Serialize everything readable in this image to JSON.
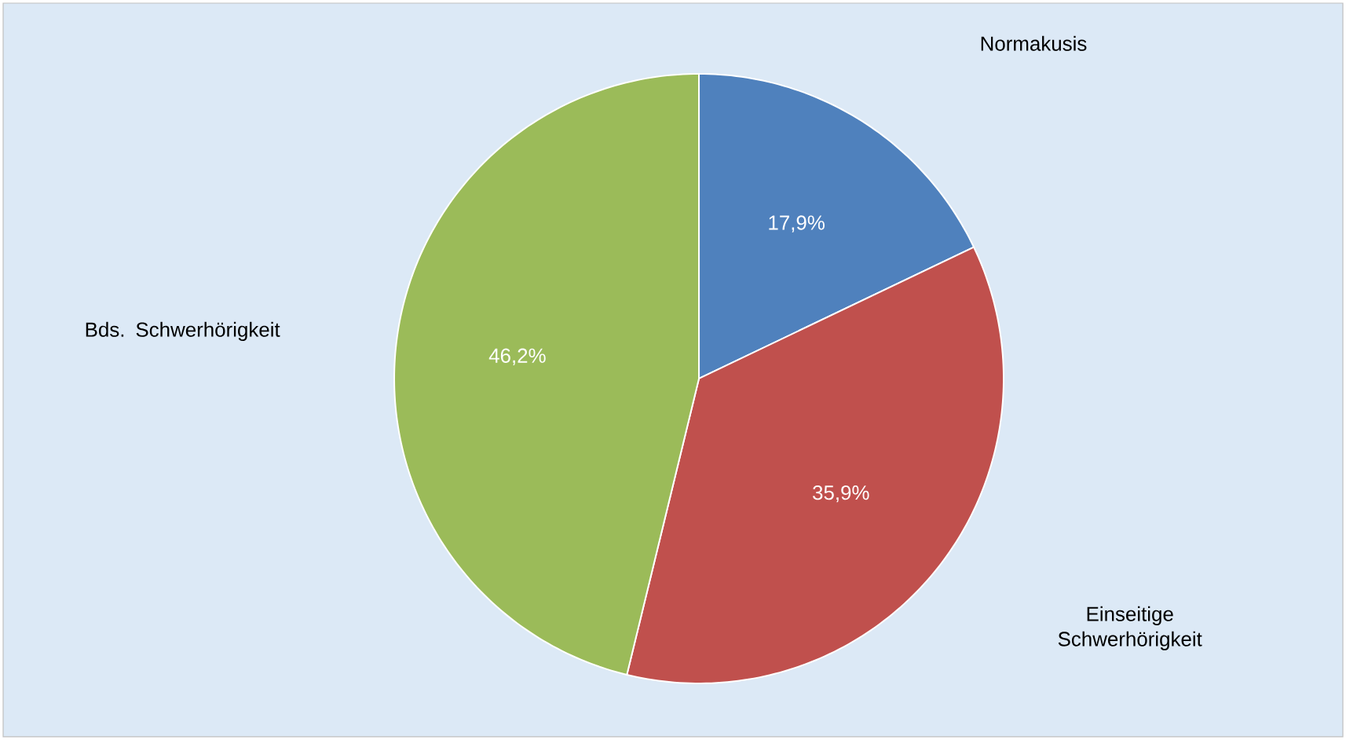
{
  "chart_data": {
    "type": "pie",
    "categories": [
      "Normakusis",
      "Einseitige Schwerhörigkeit",
      "Bds. Schwerhörigkeit"
    ],
    "values": [
      17.9,
      35.9,
      46.2
    ],
    "colors": [
      "#4f81bd",
      "#c0504d",
      "#9bbb59"
    ],
    "value_labels": [
      "17,9%",
      "35,9%",
      "46,2%"
    ]
  }
}
